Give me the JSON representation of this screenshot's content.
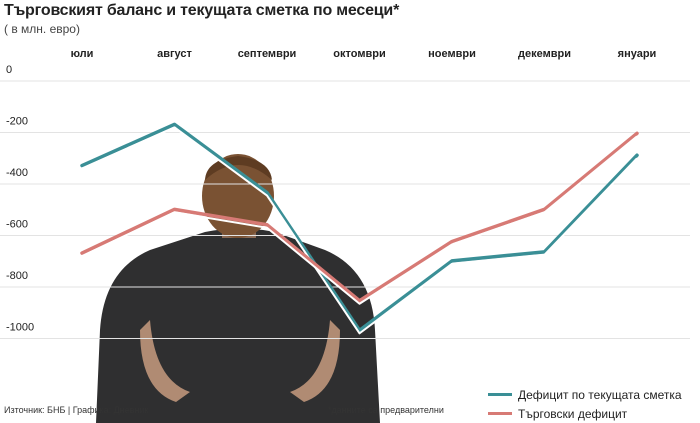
{
  "header": {
    "title": "Търговският баланс и текущата сметка по месеци*",
    "subtitle": "( в млн. евро)"
  },
  "footer": {
    "source": "Източник: БНБ | Графика: Дневник",
    "note": "*данните са предварителни"
  },
  "colors": {
    "current_account": "#3a8f96",
    "trade": "#d77a75"
  },
  "chart_data": {
    "type": "line",
    "categories": [
      "юли",
      "август",
      "септември",
      "октомври",
      "ноември",
      "декември",
      "януари"
    ],
    "series": [
      {
        "name": "Дефицит по текущата сметка",
        "values": [
          -375,
          -215,
          -480,
          -1015,
          -745,
          -710,
          -335
        ]
      },
      {
        "name": "Търговски дефицит",
        "values": [
          -715,
          -545,
          -605,
          -900,
          -670,
          -545,
          -250
        ]
      }
    ],
    "ylim": [
      -1100,
      0
    ],
    "yticks": [
      0,
      -200,
      -400,
      -600,
      -800,
      -1000
    ],
    "grid": true,
    "legend_position": "bottom-right"
  }
}
